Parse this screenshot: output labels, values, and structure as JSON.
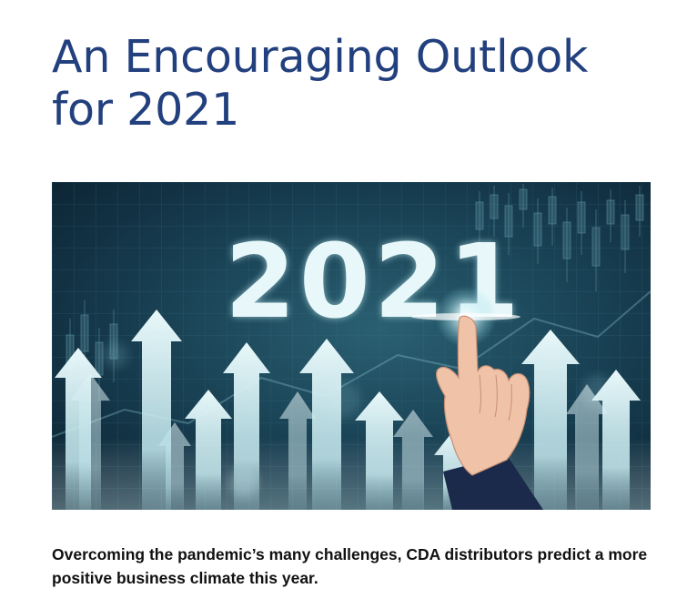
{
  "article": {
    "title": "An Encouraging Outlook for 2021",
    "subtitle": "Overcoming the pandemic’s many challenges, CDA distributors predict a more positive business climate this year."
  },
  "hero_image": {
    "year_text": "2021",
    "icons": [
      "up-arrow-icon",
      "candlestick-chart-icon",
      "pointing-hand-icon"
    ],
    "colors": {
      "background_dark": "#0f2a3a",
      "background_mid": "#1d4a5c",
      "glow": "#dff4f6"
    }
  },
  "colors": {
    "title": "#22407e",
    "body_text": "#111111"
  }
}
